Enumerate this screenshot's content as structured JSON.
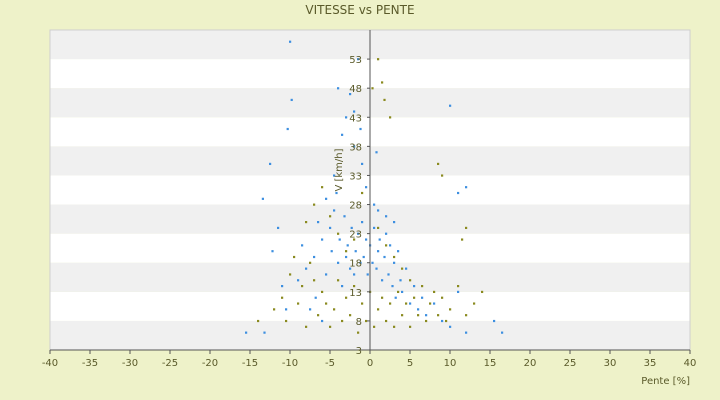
{
  "chart_data": {
    "type": "scatter",
    "title": "VITESSE vs PENTE",
    "xlabel": "Pente [%]",
    "ylabel": "V [km/h]",
    "xlim": [
      -40,
      40
    ],
    "ylim": [
      3,
      58
    ],
    "x_ticks": [
      "-40",
      "-35",
      "-30",
      "-25",
      "-20",
      "-15",
      "-10",
      "-5",
      "0",
      "5",
      "10",
      "15",
      "20",
      "25",
      "30",
      "35",
      "40"
    ],
    "y_ticks": [
      "3",
      "8",
      "13",
      "18",
      "23",
      "28",
      "33",
      "38",
      "43",
      "48",
      "53"
    ],
    "grid": "alternating horizontal bands",
    "series": [
      {
        "color": "#3d8fe0",
        "points": [
          [
            -15.5,
            6
          ],
          [
            -13.2,
            6
          ],
          [
            -12.5,
            35
          ],
          [
            -13.4,
            29
          ],
          [
            -11,
            14
          ],
          [
            -10.5,
            10
          ],
          [
            -10,
            56
          ],
          [
            -9.8,
            46
          ],
          [
            -10.3,
            41
          ],
          [
            -7.5,
            10
          ],
          [
            -6.8,
            12
          ],
          [
            -6,
            8
          ],
          [
            -5.5,
            16
          ],
          [
            -5,
            24
          ],
          [
            -4.8,
            20
          ],
          [
            -4.5,
            27
          ],
          [
            -4.2,
            30
          ],
          [
            -4,
            18
          ],
          [
            -3.8,
            22
          ],
          [
            -3.5,
            14
          ],
          [
            -3.2,
            26
          ],
          [
            -3,
            19
          ],
          [
            -2.8,
            21
          ],
          [
            -2.5,
            17
          ],
          [
            -2.3,
            24
          ],
          [
            -2,
            16
          ],
          [
            -1.8,
            20
          ],
          [
            -1.5,
            23
          ],
          [
            -1.2,
            18
          ],
          [
            -1,
            25
          ],
          [
            -0.8,
            19
          ],
          [
            -0.5,
            22
          ],
          [
            -0.3,
            16
          ],
          [
            0,
            21
          ],
          [
            0.3,
            18
          ],
          [
            0.5,
            24
          ],
          [
            0.8,
            17
          ],
          [
            1,
            20
          ],
          [
            1.2,
            22
          ],
          [
            1.5,
            15
          ],
          [
            1.8,
            19
          ],
          [
            2,
            23
          ],
          [
            2.3,
            16
          ],
          [
            2.5,
            21
          ],
          [
            2.8,
            14
          ],
          [
            3,
            18
          ],
          [
            3.2,
            12
          ],
          [
            3.5,
            20
          ],
          [
            3.8,
            15
          ],
          [
            4,
            13
          ],
          [
            4.5,
            17
          ],
          [
            5,
            11
          ],
          [
            5.5,
            14
          ],
          [
            6,
            10
          ],
          [
            6.5,
            12
          ],
          [
            7,
            9
          ],
          [
            8,
            11
          ],
          [
            9,
            8
          ],
          [
            10,
            7
          ],
          [
            11,
            13
          ],
          [
            12,
            6
          ],
          [
            15.5,
            8
          ],
          [
            16.5,
            6
          ],
          [
            -4,
            48
          ],
          [
            -3,
            43
          ],
          [
            -2,
            38
          ],
          [
            -1.5,
            53
          ],
          [
            -2.5,
            47
          ],
          [
            -3.5,
            40
          ],
          [
            -1,
            35
          ],
          [
            -0.5,
            31
          ],
          [
            0.5,
            28
          ],
          [
            1,
            27
          ],
          [
            2,
            26
          ],
          [
            3,
            25
          ],
          [
            -6,
            22
          ],
          [
            -7,
            19
          ],
          [
            -8,
            17
          ],
          [
            -9,
            15
          ],
          [
            -6.5,
            25
          ],
          [
            -5.5,
            29
          ],
          [
            -4.5,
            33
          ],
          [
            -2,
            44
          ],
          [
            -1.2,
            41
          ],
          [
            0.8,
            37
          ],
          [
            10,
            45
          ],
          [
            11,
            30
          ],
          [
            12,
            31
          ],
          [
            -11.5,
            24
          ],
          [
            -12.2,
            20
          ],
          [
            -8.5,
            21
          ]
        ]
      },
      {
        "color": "#8a8a1f",
        "points": [
          [
            -14,
            8
          ],
          [
            -12,
            10
          ],
          [
            -11,
            12
          ],
          [
            -10.5,
            8
          ],
          [
            -10,
            16
          ],
          [
            -9.5,
            19
          ],
          [
            -9,
            11
          ],
          [
            -8.5,
            14
          ],
          [
            -8,
            7
          ],
          [
            -7.5,
            18
          ],
          [
            -7,
            15
          ],
          [
            -6.5,
            9
          ],
          [
            -6,
            13
          ],
          [
            -5.5,
            11
          ],
          [
            -5,
            7
          ],
          [
            -4.5,
            10
          ],
          [
            -4,
            15
          ],
          [
            -3.5,
            8
          ],
          [
            -3,
            12
          ],
          [
            -2.5,
            9
          ],
          [
            -2,
            14
          ],
          [
            -1.5,
            6
          ],
          [
            -1,
            11
          ],
          [
            -0.5,
            8
          ],
          [
            0,
            13
          ],
          [
            0.5,
            7
          ],
          [
            1,
            10
          ],
          [
            1.5,
            12
          ],
          [
            2,
            8
          ],
          [
            2.5,
            11
          ],
          [
            3,
            7
          ],
          [
            3.5,
            13
          ],
          [
            4,
            9
          ],
          [
            4.5,
            11
          ],
          [
            5,
            7
          ],
          [
            5.5,
            12
          ],
          [
            6,
            9
          ],
          [
            6.5,
            14
          ],
          [
            7,
            8
          ],
          [
            7.5,
            11
          ],
          [
            8,
            13
          ],
          [
            8.5,
            9
          ],
          [
            9,
            12
          ],
          [
            9.5,
            8
          ],
          [
            10,
            10
          ],
          [
            11,
            14
          ],
          [
            12,
            9
          ],
          [
            13,
            11
          ],
          [
            14,
            13
          ],
          [
            -8,
            25
          ],
          [
            -7,
            28
          ],
          [
            -6,
            31
          ],
          [
            -5,
            26
          ],
          [
            -4,
            23
          ],
          [
            -3,
            20
          ],
          [
            -2,
            22
          ],
          [
            1,
            24
          ],
          [
            2,
            21
          ],
          [
            3,
            19
          ],
          [
            4,
            17
          ],
          [
            5,
            15
          ],
          [
            0.3,
            48
          ],
          [
            1,
            53
          ],
          [
            1.5,
            49
          ],
          [
            2.5,
            43
          ],
          [
            1.8,
            46
          ],
          [
            -1,
            30
          ],
          [
            8.5,
            35
          ],
          [
            9,
            33
          ],
          [
            11.5,
            22
          ],
          [
            12,
            24
          ]
        ]
      }
    ]
  }
}
